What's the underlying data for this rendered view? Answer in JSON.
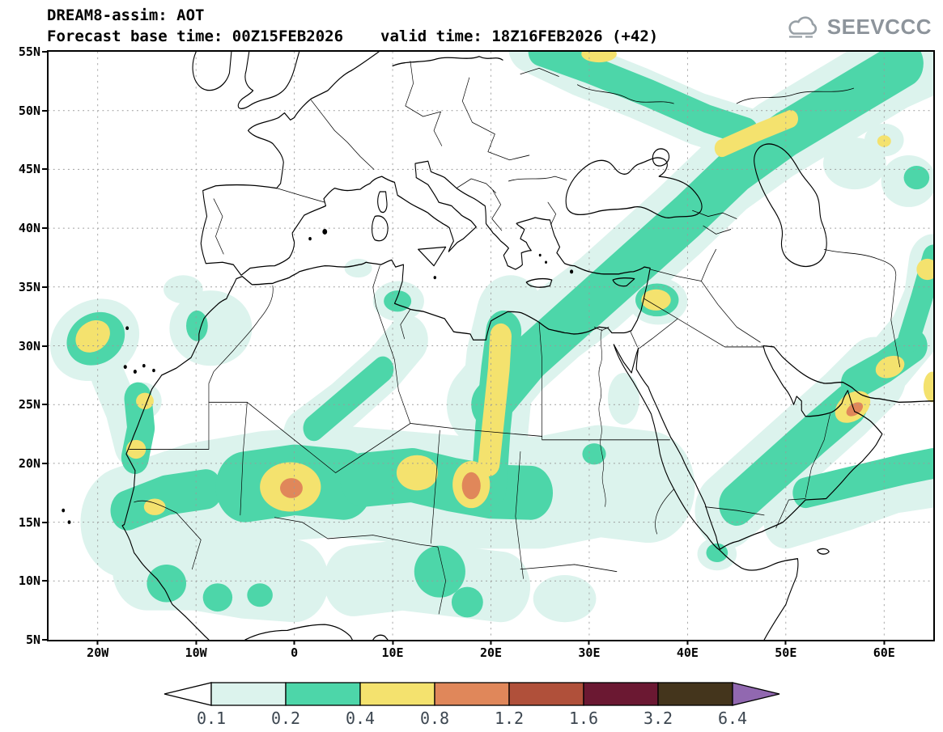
{
  "header": {
    "title": "DREAM8-assim: AOT",
    "subtitle_left": "Forecast base time: 00Z15FEB2026",
    "subtitle_right": "valid time: 18Z16FEB2026 (+42)",
    "logo_text": "SEEVCCC"
  },
  "axes": {
    "lat_ticks": [
      {
        "label": "55N",
        "value": 55
      },
      {
        "label": "50N",
        "value": 50
      },
      {
        "label": "45N",
        "value": 45
      },
      {
        "label": "40N",
        "value": 40
      },
      {
        "label": "35N",
        "value": 35
      },
      {
        "label": "30N",
        "value": 30
      },
      {
        "label": "25N",
        "value": 25
      },
      {
        "label": "20N",
        "value": 20
      },
      {
        "label": "15N",
        "value": 15
      },
      {
        "label": "10N",
        "value": 10
      },
      {
        "label": "5N",
        "value": 5
      }
    ],
    "lon_ticks": [
      {
        "label": "20W",
        "value": -20
      },
      {
        "label": "10W",
        "value": -10
      },
      {
        "label": "0",
        "value": 0
      },
      {
        "label": "10E",
        "value": 10
      },
      {
        "label": "20E",
        "value": 20
      },
      {
        "label": "30E",
        "value": 30
      },
      {
        "label": "40E",
        "value": 40
      },
      {
        "label": "50E",
        "value": 50
      },
      {
        "label": "60E",
        "value": 60
      }
    ]
  },
  "colorbar": {
    "labels": [
      "0.1",
      "0.2",
      "0.4",
      "0.8",
      "1.2",
      "1.6",
      "3.2",
      "6.4"
    ],
    "segment_colors": [
      "#dcf3ed",
      "#4dd6a9",
      "#f4e26e",
      "#e0875a",
      "#b0503a",
      "#6b1832",
      "#44351c"
    ],
    "left_arrow_color": "#ffffff",
    "right_arrow_color": "#9168b0",
    "label_color": "#3c4650"
  },
  "chart_data": {
    "type": "filled-contour-map",
    "variable": "AOT",
    "model": "DREAM8-assim",
    "base_time": "00Z15FEB2026",
    "valid_time": "18Z16FEB2026 (+42)",
    "lon_range": [
      -25,
      65
    ],
    "lat_range": [
      5,
      55
    ],
    "contour_levels": [
      0.1,
      0.2,
      0.4,
      0.8,
      1.2,
      1.6,
      3.2,
      6.4
    ],
    "level_colors": [
      "#dcf3ed",
      "#4dd6a9",
      "#f4e26e",
      "#e0875a"
    ],
    "features": [
      {
        "kind": "band",
        "level": 1,
        "width": 9.5,
        "points": [
          [
            -17,
            15
          ],
          [
            -10,
            17
          ],
          [
            -3,
            18
          ],
          [
            4,
            18.5
          ],
          [
            11,
            18
          ],
          [
            18,
            17.5
          ],
          [
            25,
            17.5
          ],
          [
            31,
            18.5
          ],
          [
            36,
            18
          ]
        ]
      },
      {
        "kind": "band",
        "level": 1,
        "width": 7,
        "points": [
          [
            -15,
            11
          ],
          [
            -10,
            11
          ],
          [
            -5,
            10.3
          ],
          [
            0,
            10
          ]
        ]
      },
      {
        "kind": "ellipse",
        "level": 1,
        "lon": -20.3,
        "lat": 30.5,
        "rx": 4.6,
        "ry": 3.4,
        "rot": -15
      },
      {
        "kind": "band",
        "level": 1,
        "width": 3.4,
        "points": [
          [
            -19,
            27.5
          ],
          [
            -17.5,
            24.5
          ],
          [
            -16.6,
            21.5
          ]
        ]
      },
      {
        "kind": "ellipse",
        "level": 1,
        "lon": -8.5,
        "lat": 31.5,
        "rx": 4.2,
        "ry": 3.2
      },
      {
        "kind": "ellipse",
        "level": 1,
        "lon": -11.3,
        "lat": 34.8,
        "rx": 2,
        "ry": 1.2
      },
      {
        "kind": "band",
        "level": 1,
        "width": 4.2,
        "points": [
          [
            1,
            22.5
          ],
          [
            5,
            25
          ],
          [
            9,
            28
          ],
          [
            11.5,
            30.5
          ]
        ]
      },
      {
        "kind": "ellipse",
        "level": 1,
        "lon": 10.6,
        "lat": 33.8,
        "rx": 2.6,
        "ry": 1.7
      },
      {
        "kind": "ellipse",
        "level": 1,
        "lon": 6.5,
        "lat": 36.6,
        "rx": 1.4,
        "ry": 0.8
      },
      {
        "kind": "band",
        "level": 1,
        "width": 7,
        "points": [
          [
            20,
            17
          ],
          [
            20.3,
            23
          ],
          [
            21,
            29
          ],
          [
            22,
            32.5
          ]
        ]
      },
      {
        "kind": "band",
        "level": 1,
        "width": 7,
        "points": [
          [
            19,
            25
          ],
          [
            23,
            29
          ],
          [
            27,
            32
          ],
          [
            31,
            34.5
          ],
          [
            35,
            37.5
          ],
          [
            39,
            40.5
          ],
          [
            44,
            44.5
          ],
          [
            49,
            47.5
          ],
          [
            55,
            50.5
          ],
          [
            61,
            53.5
          ],
          [
            65,
            55
          ]
        ]
      },
      {
        "kind": "band",
        "level": 1,
        "width": 4.5,
        "points": [
          [
            24,
            55.5
          ],
          [
            29,
            53.5
          ],
          [
            35,
            51.5
          ],
          [
            41,
            49.3
          ],
          [
            46,
            48
          ]
        ]
      },
      {
        "kind": "ellipse",
        "level": 1,
        "lon": 37,
        "lat": 33.8,
        "rx": 3,
        "ry": 2
      },
      {
        "kind": "band",
        "level": 1,
        "width": 6,
        "points": [
          [
            6,
            10
          ],
          [
            11,
            10.5
          ],
          [
            16,
            10
          ],
          [
            21,
            9.5
          ]
        ]
      },
      {
        "kind": "ellipse",
        "level": 1,
        "lon": 27.5,
        "lat": 8.5,
        "rx": 3.2,
        "ry": 2
      },
      {
        "kind": "band",
        "level": 1,
        "width": 6.5,
        "points": [
          [
            44,
            16
          ],
          [
            48,
            19
          ],
          [
            52,
            22
          ],
          [
            56,
            25
          ],
          [
            59,
            27.5
          ]
        ]
      },
      {
        "kind": "band",
        "level": 1,
        "width": 4.5,
        "points": [
          [
            50,
            15
          ],
          [
            56,
            16.5
          ],
          [
            61,
            18
          ],
          [
            65,
            18.5
          ]
        ]
      },
      {
        "kind": "band",
        "level": 1,
        "width": 5,
        "points": [
          [
            57,
            26.5
          ],
          [
            60.5,
            28.5
          ],
          [
            63,
            31
          ],
          [
            64.5,
            34
          ],
          [
            65,
            37
          ]
        ]
      },
      {
        "kind": "ellipse",
        "level": 1,
        "lon": 57,
        "lat": 45.5,
        "rx": 3.2,
        "ry": 2.2
      },
      {
        "kind": "ellipse",
        "level": 1,
        "lon": 62.5,
        "lat": 44,
        "rx": 2.8,
        "ry": 2.2
      },
      {
        "kind": "ellipse",
        "level": 1,
        "lon": 60,
        "lat": 47.5,
        "rx": 2,
        "ry": 1.4
      },
      {
        "kind": "ellipse",
        "level": 1,
        "lon": 30.5,
        "lat": 20.5,
        "rx": 2.2,
        "ry": 1.6
      },
      {
        "kind": "ellipse",
        "level": 1,
        "lon": 43,
        "lat": 12.3,
        "rx": 2,
        "ry": 1.4
      },
      {
        "kind": "ellipse",
        "level": 1,
        "lon": -15.5,
        "lat": 25.3,
        "rx": 2,
        "ry": 1.6
      },
      {
        "kind": "ellipse",
        "level": 1,
        "lon": 33.5,
        "lat": 25.5,
        "rx": 1.6,
        "ry": 2.2
      },
      {
        "kind": "band",
        "level": 2,
        "width": 3.4,
        "points": [
          [
            -17,
            16
          ],
          [
            -13,
            17.3
          ],
          [
            -9,
            17.8
          ]
        ]
      },
      {
        "kind": "band",
        "level": 2,
        "width": 2.8,
        "points": [
          [
            -16.2,
            20.5
          ],
          [
            -15.6,
            23
          ],
          [
            -15.9,
            25.5
          ]
        ]
      },
      {
        "kind": "band",
        "level": 2,
        "width": 6,
        "points": [
          [
            -5,
            18
          ],
          [
            0,
            18.6
          ],
          [
            5,
            18.2
          ]
        ]
      },
      {
        "kind": "band",
        "level": 2,
        "width": 4.6,
        "points": [
          [
            7,
            18.6
          ],
          [
            12,
            19
          ],
          [
            16,
            18.2
          ],
          [
            20,
            17.6
          ],
          [
            24,
            17.5
          ]
        ]
      },
      {
        "kind": "band",
        "level": 2,
        "width": 3.6,
        "points": [
          [
            19.8,
            18
          ],
          [
            20.2,
            23
          ],
          [
            20.8,
            28
          ],
          [
            21.3,
            31.2
          ]
        ]
      },
      {
        "kind": "band",
        "level": 2,
        "width": 2.2,
        "points": [
          [
            2,
            23
          ],
          [
            5.5,
            25.5
          ],
          [
            9,
            28
          ]
        ]
      },
      {
        "kind": "ellipse",
        "level": 2,
        "lon": 10.5,
        "lat": 33.8,
        "rx": 1.4,
        "ry": 0.9
      },
      {
        "kind": "ellipse",
        "level": 2,
        "lon": -20.2,
        "lat": 30.6,
        "rx": 3,
        "ry": 2.2,
        "rot": -15
      },
      {
        "kind": "ellipse",
        "level": 2,
        "lon": -9.9,
        "lat": 31.7,
        "rx": 1.1,
        "ry": 1.3
      },
      {
        "kind": "band",
        "level": 2,
        "width": 4,
        "points": [
          [
            20,
            25
          ],
          [
            24,
            29
          ],
          [
            28,
            32
          ],
          [
            32,
            35
          ],
          [
            36,
            38
          ],
          [
            40,
            41
          ],
          [
            45,
            45
          ],
          [
            50,
            48
          ],
          [
            56,
            51
          ],
          [
            62,
            54
          ]
        ]
      },
      {
        "kind": "band",
        "level": 2,
        "width": 2.4,
        "points": [
          [
            25,
            55
          ],
          [
            30,
            53.5
          ],
          [
            36,
            51.5
          ],
          [
            42,
            49.3
          ],
          [
            46,
            48.2
          ]
        ]
      },
      {
        "kind": "ellipse",
        "level": 2,
        "lon": 14.8,
        "lat": 10.8,
        "rx": 2.6,
        "ry": 2.2
      },
      {
        "kind": "ellipse",
        "level": 2,
        "lon": 17.6,
        "lat": 8.2,
        "rx": 1.6,
        "ry": 1.3
      },
      {
        "kind": "ellipse",
        "level": 2,
        "lon": -13,
        "lat": 9.8,
        "rx": 2,
        "ry": 1.6
      },
      {
        "kind": "ellipse",
        "level": 2,
        "lon": -7.8,
        "lat": 8.6,
        "rx": 1.5,
        "ry": 1.2
      },
      {
        "kind": "ellipse",
        "level": 2,
        "lon": -3.5,
        "lat": 8.8,
        "rx": 1.3,
        "ry": 1
      },
      {
        "kind": "band",
        "level": 2,
        "width": 3.6,
        "points": [
          [
            45,
            16.5
          ],
          [
            49,
            19.5
          ],
          [
            53,
            22.5
          ],
          [
            56.5,
            25
          ]
        ]
      },
      {
        "kind": "band",
        "level": 2,
        "width": 2.6,
        "points": [
          [
            52,
            17.5
          ],
          [
            57,
            18.5
          ],
          [
            62,
            19.5
          ],
          [
            65,
            20
          ]
        ]
      },
      {
        "kind": "band",
        "level": 2,
        "width": 2.8,
        "points": [
          [
            57,
            26.8
          ],
          [
            60,
            28.2
          ],
          [
            63,
            30
          ]
        ]
      },
      {
        "kind": "band",
        "level": 2,
        "width": 2.2,
        "points": [
          [
            62.5,
            30.5
          ],
          [
            63.8,
            34
          ],
          [
            65,
            37.5
          ]
        ]
      },
      {
        "kind": "ellipse",
        "level": 2,
        "lon": 63.3,
        "lat": 44.3,
        "rx": 1.3,
        "ry": 1
      },
      {
        "kind": "ellipse",
        "level": 2,
        "lon": 30.5,
        "lat": 20.8,
        "rx": 1.2,
        "ry": 0.9
      },
      {
        "kind": "ellipse",
        "level": 2,
        "lon": 43,
        "lat": 12.4,
        "rx": 1.1,
        "ry": 0.8
      },
      {
        "kind": "ellipse",
        "level": 2,
        "lon": 36.9,
        "lat": 33.9,
        "rx": 2.2,
        "ry": 1.4
      },
      {
        "kind": "ellipse",
        "level": 3,
        "lon": -20.5,
        "lat": 30.8,
        "rx": 1.8,
        "ry": 1.3,
        "rot": -20
      },
      {
        "kind": "ellipse",
        "level": 3,
        "lon": -15.2,
        "lat": 25.3,
        "rx": 0.9,
        "ry": 0.7
      },
      {
        "kind": "ellipse",
        "level": 3,
        "lon": -16.1,
        "lat": 21.2,
        "rx": 1,
        "ry": 0.8
      },
      {
        "kind": "ellipse",
        "level": 3,
        "lon": -14.2,
        "lat": 16.3,
        "rx": 1.1,
        "ry": 0.7
      },
      {
        "kind": "ellipse",
        "level": 3,
        "lon": -0.4,
        "lat": 18,
        "rx": 3.1,
        "ry": 2.1
      },
      {
        "kind": "ellipse",
        "level": 3,
        "lon": 12.5,
        "lat": 19.2,
        "rx": 2.1,
        "ry": 1.5
      },
      {
        "kind": "ellipse",
        "level": 3,
        "lon": 18,
        "lat": 18.2,
        "rx": 1.9,
        "ry": 2
      },
      {
        "kind": "band",
        "level": 3,
        "width": 2.2,
        "points": [
          [
            19.8,
            20
          ],
          [
            20.3,
            24
          ],
          [
            20.8,
            28
          ],
          [
            21,
            30.8
          ]
        ]
      },
      {
        "kind": "ellipse",
        "level": 3,
        "lon": 36.8,
        "lat": 33.9,
        "rx": 1.5,
        "ry": 0.9
      },
      {
        "kind": "band",
        "level": 3,
        "width": 1.5,
        "points": [
          [
            43.5,
            46.8
          ],
          [
            47,
            48.1
          ],
          [
            50.5,
            49.3
          ]
        ]
      },
      {
        "kind": "ellipse",
        "level": 3,
        "lon": 31,
        "lat": 54.8,
        "rx": 1.8,
        "ry": 0.7
      },
      {
        "kind": "ellipse",
        "level": 3,
        "lon": 56.8,
        "lat": 24.8,
        "rx": 1.9,
        "ry": 1.2,
        "rot": -25
      },
      {
        "kind": "ellipse",
        "level": 3,
        "lon": 60.6,
        "lat": 28.2,
        "rx": 1.5,
        "ry": 0.9,
        "rot": -15
      },
      {
        "kind": "ellipse",
        "level": 3,
        "lon": 64.4,
        "lat": 36.5,
        "rx": 1.1,
        "ry": 0.9
      },
      {
        "kind": "ellipse",
        "level": 3,
        "lon": 64.9,
        "lat": 26.5,
        "rx": 0.9,
        "ry": 1.3
      },
      {
        "kind": "ellipse",
        "level": 3,
        "lon": 60,
        "lat": 47.4,
        "rx": 0.7,
        "ry": 0.5
      },
      {
        "kind": "ellipse",
        "level": 4,
        "lon": -0.3,
        "lat": 17.9,
        "rx": 1.15,
        "ry": 0.85
      },
      {
        "kind": "ellipse",
        "level": 4,
        "lon": 18,
        "lat": 18.1,
        "rx": 0.95,
        "ry": 1.15
      },
      {
        "kind": "ellipse",
        "level": 4,
        "lon": 57,
        "lat": 24.6,
        "rx": 0.9,
        "ry": 0.5,
        "rot": -25
      }
    ]
  }
}
